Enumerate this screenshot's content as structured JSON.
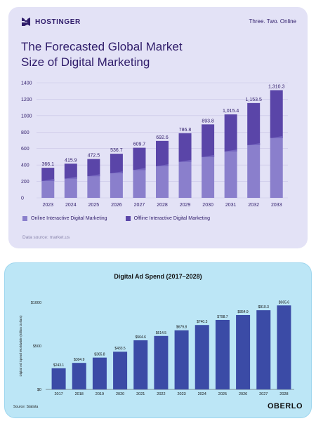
{
  "top_card": {
    "brand": "HOSTINGER",
    "tagline": "Three. Two. Online",
    "title_line1": "The Forecasted Global Market",
    "title_line2": "Size of Digital Marketing",
    "source": "Data source: market.us",
    "colors": {
      "online": "#8a7fcc",
      "offline": "#5a45a8",
      "text": "#2f1c6a",
      "background": "#e3e2f6"
    }
  },
  "bottom_card": {
    "title": "Digital Ad Spend (2017–2028)",
    "source": "Source: Statista",
    "brand": "OBERLO",
    "colors": {
      "bar": "#3b4ba6",
      "background": "#bce6f6"
    }
  },
  "chart_data": [
    {
      "type": "bar",
      "stacked": true,
      "title": "The Forecasted Global Market Size of Digital Marketing",
      "categories": [
        "2023",
        "2024",
        "2025",
        "2026",
        "2027",
        "2028",
        "2029",
        "2030",
        "2031",
        "2032",
        "2033"
      ],
      "totals": [
        366.1,
        415.9,
        472.5,
        536.7,
        609.7,
        692.6,
        786.8,
        893.8,
        1015.4,
        1153.5,
        1310.3
      ],
      "total_labels": [
        "366.1",
        "415.9",
        "472.5",
        "536.7",
        "609.7",
        "692.6",
        "786.8",
        "893.8",
        "1,015.4",
        "1,153.5",
        "1,310.3"
      ],
      "series": [
        {
          "name": "Online Interactive Digital Marketing",
          "values": [
            205,
            233,
            262,
            298,
            338,
            384,
            437,
            496,
            563,
            640,
            727
          ]
        },
        {
          "name": "Offline Interactive Digital Marketing",
          "values": [
            161.1,
            182.9,
            210.5,
            238.7,
            271.7,
            308.6,
            349.8,
            397.8,
            452.4,
            513.5,
            583.3
          ]
        }
      ],
      "yticks": [
        0,
        200,
        400,
        600,
        800,
        1000,
        1200,
        1400
      ],
      "ylim": [
        0,
        1400
      ],
      "grid": true,
      "legend": "bottom-left"
    },
    {
      "type": "bar",
      "title": "Digital Ad Spend (2017–2028)",
      "ylabel": "Digital Ad Spend Worldwide (Billion Dollars)",
      "categories": [
        "2017",
        "2018",
        "2019",
        "2020",
        "2021",
        "2022",
        "2023",
        "2024",
        "2025",
        "2026",
        "2027",
        "2028"
      ],
      "values": [
        243.1,
        304.9,
        365.8,
        433.5,
        564.6,
        614.5,
        679.8,
        740.3,
        798.7,
        854.9,
        910.3,
        965.6
      ],
      "value_labels": [
        "$243.1",
        "$304.9",
        "$365.8",
        "$433.5",
        "$564.6",
        "$614.5",
        "$679.8",
        "$740.3",
        "$798.7",
        "$854.9",
        "$910.3",
        "$965.6"
      ],
      "yticks": [
        0,
        500,
        1000
      ],
      "ytick_labels": [
        "$0",
        "$500",
        "$1000"
      ],
      "ylim": [
        0,
        1000
      ],
      "grid": false
    }
  ]
}
